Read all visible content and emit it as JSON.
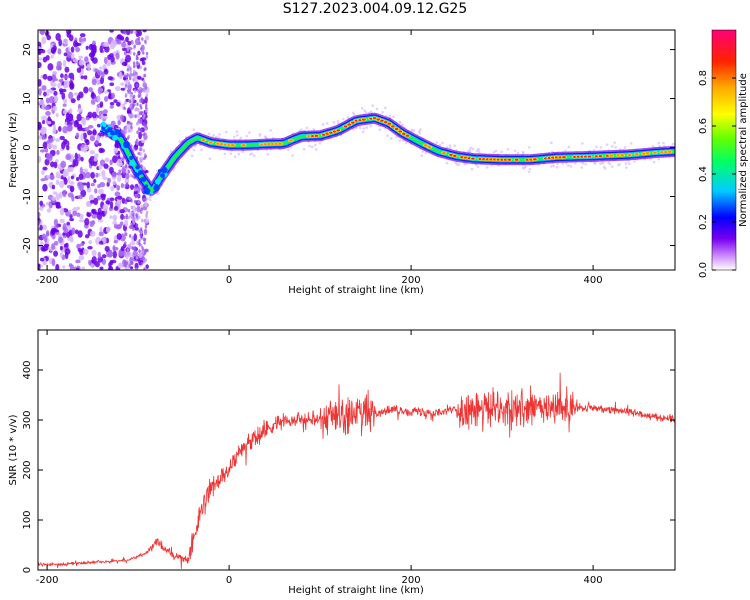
{
  "title": "S127.2023.004.09.12.G25",
  "chart_data": [
    {
      "type": "heatmap",
      "xlabel": "Height of straight line (km)",
      "ylabel": "Frequency (Hz)",
      "xlim": [
        -210,
        490
      ],
      "ylim": [
        -25,
        24
      ],
      "xticks": [
        -200,
        0,
        200,
        400
      ],
      "yticks": [
        -20,
        -10,
        0,
        10,
        20
      ],
      "colorbar": {
        "label": "Normalized spectral amplitude",
        "range": [
          0.0,
          1.0
        ],
        "ticks": [
          0.0,
          0.2,
          0.4,
          0.6,
          0.8
        ]
      },
      "ridge": {
        "x": [
          -140,
          -120,
          -100,
          -85,
          -75,
          -60,
          -45,
          -35,
          -20,
          0,
          20,
          40,
          60,
          70,
          80,
          100,
          120,
          140,
          160,
          175,
          190,
          210,
          230,
          250,
          270,
          300,
          330,
          360,
          400,
          440,
          470,
          490
        ],
        "freq": [
          4,
          2,
          -5,
          -9,
          -6,
          -2,
          1,
          2,
          1,
          0.5,
          0.5,
          0.7,
          0.8,
          1.6,
          2.3,
          2.4,
          3.5,
          5.5,
          6,
          5,
          3,
          1,
          -0.8,
          -1.8,
          -2.3,
          -2.5,
          -2.5,
          -2,
          -1.8,
          -1.5,
          -1,
          -0.8
        ]
      }
    },
    {
      "type": "line",
      "xlabel": "Height of straight line (km)",
      "ylabel": "SNR (10 * v/v)",
      "xlim": [
        -210,
        490
      ],
      "ylim": [
        0,
        480
      ],
      "xticks": [
        -200,
        0,
        200,
        400
      ],
      "yticks": [
        0,
        100,
        200,
        300,
        400
      ],
      "color": "#ee3333",
      "envelope": {
        "x": [
          -210,
          -150,
          -110,
          -90,
          -80,
          -60,
          -45,
          -35,
          -20,
          0,
          20,
          40,
          60,
          100,
          140,
          180,
          220,
          260,
          300,
          340,
          380,
          420,
          460,
          490
        ],
        "y": [
          10,
          15,
          20,
          35,
          55,
          28,
          20,
          90,
          165,
          200,
          255,
          280,
          300,
          305,
          310,
          320,
          315,
          322,
          320,
          322,
          325,
          322,
          310,
          300
        ]
      }
    }
  ]
}
